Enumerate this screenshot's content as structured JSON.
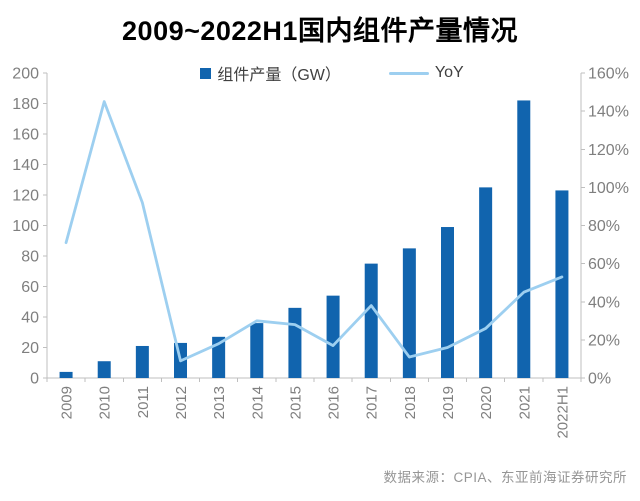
{
  "title": "2009~2022H1国内组件产量情况",
  "legend": {
    "bar_label": "组件产量（GW）",
    "line_label": "YoY"
  },
  "footer": "数据来源：CPIA、东亚前海证券研究所",
  "colors": {
    "bar": "#1164AE",
    "line": "#9DCFF0",
    "axis": "#BFBFBF",
    "tick_label": "#7F7F7F",
    "legend_text": "#404040",
    "footer_text": "#969696",
    "title_text": "#000000"
  },
  "chart_data": {
    "type": "bar",
    "title": "2009~2022H1国内组件产量情况",
    "categories": [
      "2009",
      "2010",
      "2011",
      "2012",
      "2013",
      "2014",
      "2015",
      "2016",
      "2017",
      "2018",
      "2019",
      "2020",
      "2021",
      "2022H1"
    ],
    "series": [
      {
        "name": "组件产量（GW）",
        "type": "bar",
        "axis": "left",
        "unit": "GW",
        "values": [
          4,
          11,
          21,
          23,
          27,
          36,
          46,
          54,
          75,
          85,
          99,
          125,
          182,
          123
        ]
      },
      {
        "name": "YoY",
        "type": "line",
        "axis": "right",
        "unit": "%",
        "values": [
          71,
          145,
          92,
          9,
          18,
          30,
          28,
          17,
          38,
          11,
          16,
          26,
          45,
          53
        ]
      }
    ],
    "left_axis": {
      "min": 0,
      "max": 200,
      "step": 20,
      "tick_labels": [
        "0",
        "20",
        "40",
        "60",
        "80",
        "100",
        "120",
        "140",
        "160",
        "180",
        "200"
      ]
    },
    "right_axis": {
      "min": 0,
      "max": 160,
      "step": 20,
      "tick_labels": [
        "0%",
        "20%",
        "40%",
        "60%",
        "80%",
        "100%",
        "120%",
        "140%",
        "160%"
      ]
    },
    "grid": false,
    "legend_position": "top"
  }
}
